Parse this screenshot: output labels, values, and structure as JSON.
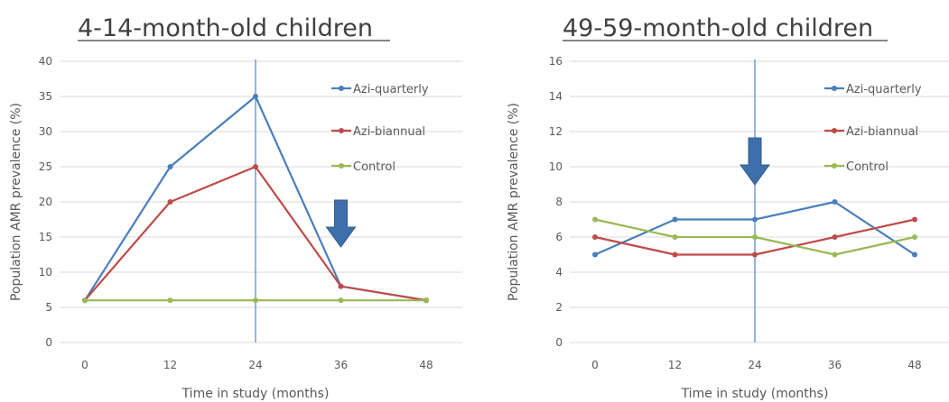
{
  "chart_data": [
    {
      "type": "line",
      "title": "4-14-month-old children",
      "xlabel": "Time in study (months)",
      "ylabel": "Population AMR prevalence (%)",
      "x": [
        0,
        12,
        24,
        36,
        48
      ],
      "ylim": [
        0,
        40
      ],
      "yticks": [
        0,
        5,
        10,
        15,
        20,
        25,
        30,
        35,
        40
      ],
      "series": [
        {
          "name": "Azi-quarterly",
          "color": "#4a7ebb",
          "values": [
            6,
            25,
            35,
            8,
            6
          ]
        },
        {
          "name": "Azi-biannual",
          "color": "#be4b48",
          "values": [
            6,
            20,
            25,
            8,
            6
          ]
        },
        {
          "name": "Control",
          "color": "#98b954",
          "values": [
            6,
            6,
            6,
            6,
            6
          ]
        }
      ],
      "vline_x": 24,
      "arrow_x": 36,
      "grid": true,
      "legend": "right"
    },
    {
      "type": "line",
      "title": "49-59-month-old children",
      "xlabel": "Time in study (months)",
      "ylabel": "Population AMR prevalence (%)",
      "x": [
        0,
        12,
        24,
        36,
        48
      ],
      "ylim": [
        0,
        16
      ],
      "yticks": [
        0,
        2,
        4,
        6,
        8,
        10,
        12,
        14,
        16
      ],
      "series": [
        {
          "name": "Azi-quarterly",
          "color": "#4a7ebb",
          "values": [
            5,
            7,
            7,
            8,
            5
          ]
        },
        {
          "name": "Azi-biannual",
          "color": "#be4b48",
          "values": [
            6,
            5,
            5,
            6,
            7
          ]
        },
        {
          "name": "Control",
          "color": "#98b954",
          "values": [
            7,
            6,
            6,
            5,
            6
          ]
        }
      ],
      "vline_x": 24,
      "arrow_x": 24,
      "grid": true,
      "legend": "right"
    }
  ],
  "colors": {
    "arrow": "#3e6faa",
    "vline": "#5b8fd0",
    "grid": "#d9d9d9"
  }
}
